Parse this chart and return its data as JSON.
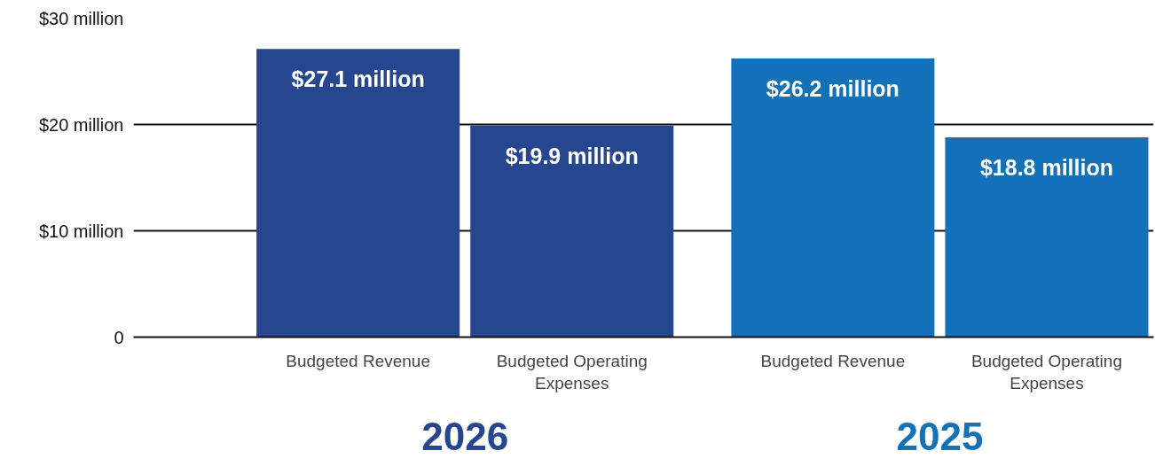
{
  "chart_data": {
    "type": "bar",
    "categories": [
      "Budgeted Revenue",
      "Budgeted Operating Expenses",
      "Budgeted Revenue",
      "Budgeted Operating Expenses"
    ],
    "series": [
      {
        "name": "2026",
        "color": "#26468f",
        "values": [
          27.1,
          19.9,
          null,
          null
        ],
        "value_labels": [
          "$27.1 million",
          "$19.9 million",
          null,
          null
        ]
      },
      {
        "name": "2025",
        "color": "#1271b8",
        "values": [
          null,
          null,
          26.2,
          18.8
        ],
        "value_labels": [
          null,
          null,
          "$26.2 million",
          "$18.8 million"
        ]
      }
    ],
    "ylim": [
      0,
      30
    ],
    "yticks": [
      0,
      {
        "value": 10,
        "label": "$10 million"
      },
      {
        "value": 20,
        "label": "$20 million"
      },
      {
        "value": 30,
        "label": "$30 million"
      }
    ],
    "grid": "y"
  }
}
